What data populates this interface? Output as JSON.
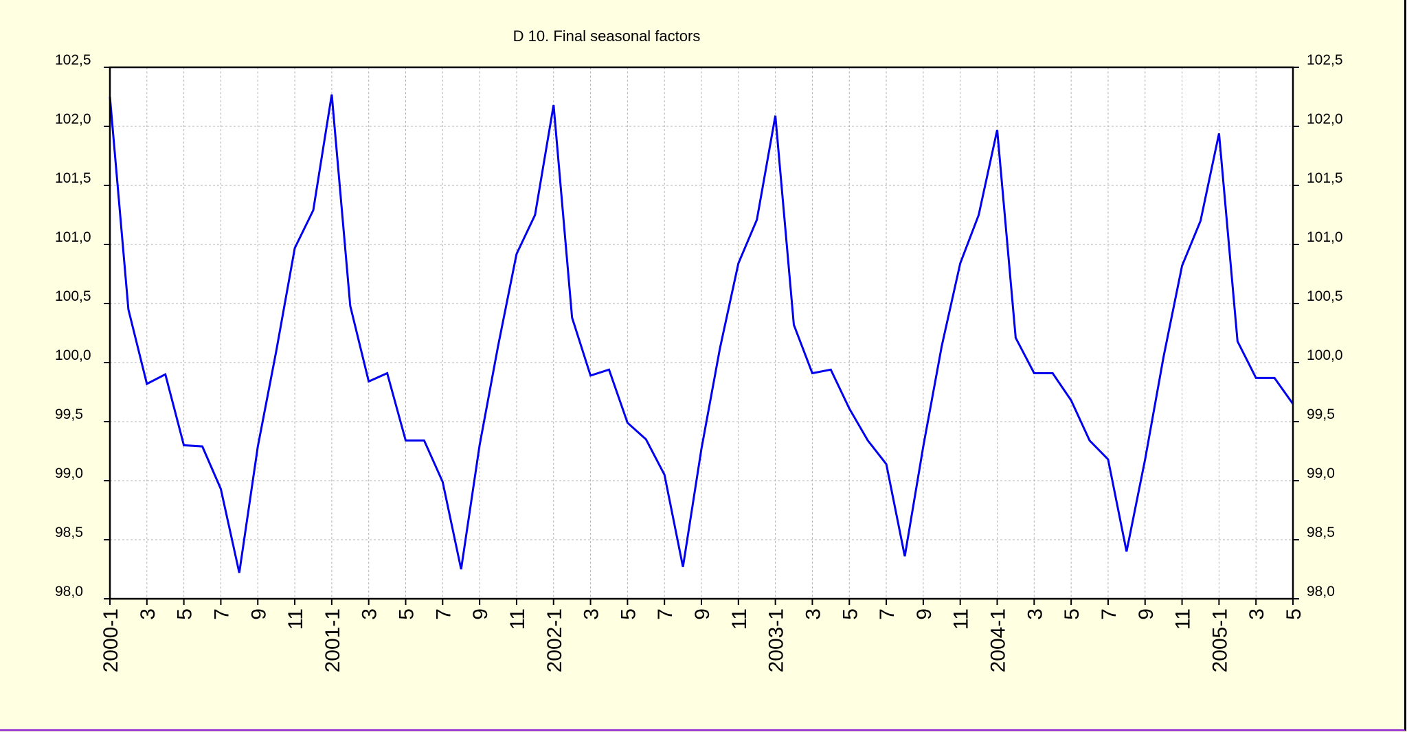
{
  "chart_data": {
    "type": "line",
    "title": "D 10. Final seasonal factors",
    "xlabel": "",
    "ylabel": "",
    "ylim": [
      98.0,
      102.5
    ],
    "y_ticks": [
      "102,5",
      "102,0",
      "101,5",
      "101,0",
      "100,5",
      "100,0",
      "99,5",
      "99,0",
      "98,5",
      "98,0"
    ],
    "y_tick_values": [
      102.5,
      102.0,
      101.5,
      101.0,
      100.5,
      100.0,
      99.5,
      99.0,
      98.5,
      98.0
    ],
    "x_ticks": [
      "2000-1",
      "3",
      "5",
      "7",
      "9",
      "11",
      "2001-1",
      "3",
      "5",
      "7",
      "9",
      "11",
      "2002-1",
      "3",
      "5",
      "7",
      "9",
      "11",
      "2003-1",
      "3",
      "5",
      "7",
      "9",
      "11",
      "2004-1",
      "3",
      "5",
      "7",
      "9",
      "11",
      "2005-1",
      "3",
      "5"
    ],
    "grid": true,
    "colors": {
      "line": "#0000ee",
      "grid": "#b4b4b4",
      "background": "#ffffe1",
      "plot": "#ffffff"
    },
    "series": [
      {
        "values": [
          102.25,
          100.45,
          99.82,
          99.9,
          99.3,
          99.29,
          98.93,
          98.22,
          99.29,
          100.1,
          100.97,
          101.29,
          102.27,
          100.48,
          99.84,
          99.91,
          99.34,
          99.34,
          98.99,
          98.25,
          99.3,
          100.14,
          100.92,
          101.25,
          102.18,
          100.38,
          99.89,
          99.94,
          99.49,
          99.35,
          99.05,
          98.27,
          99.27,
          100.12,
          100.84,
          101.21,
          102.09,
          100.32,
          99.91,
          99.94,
          99.61,
          99.34,
          99.14,
          98.36,
          99.29,
          100.14,
          100.84,
          101.25,
          101.97,
          100.21,
          99.91,
          99.91,
          99.68,
          99.34,
          99.18,
          98.4,
          99.18,
          100.05,
          100.82,
          101.2,
          101.94,
          100.18,
          99.87,
          99.87,
          99.65
        ]
      }
    ]
  }
}
